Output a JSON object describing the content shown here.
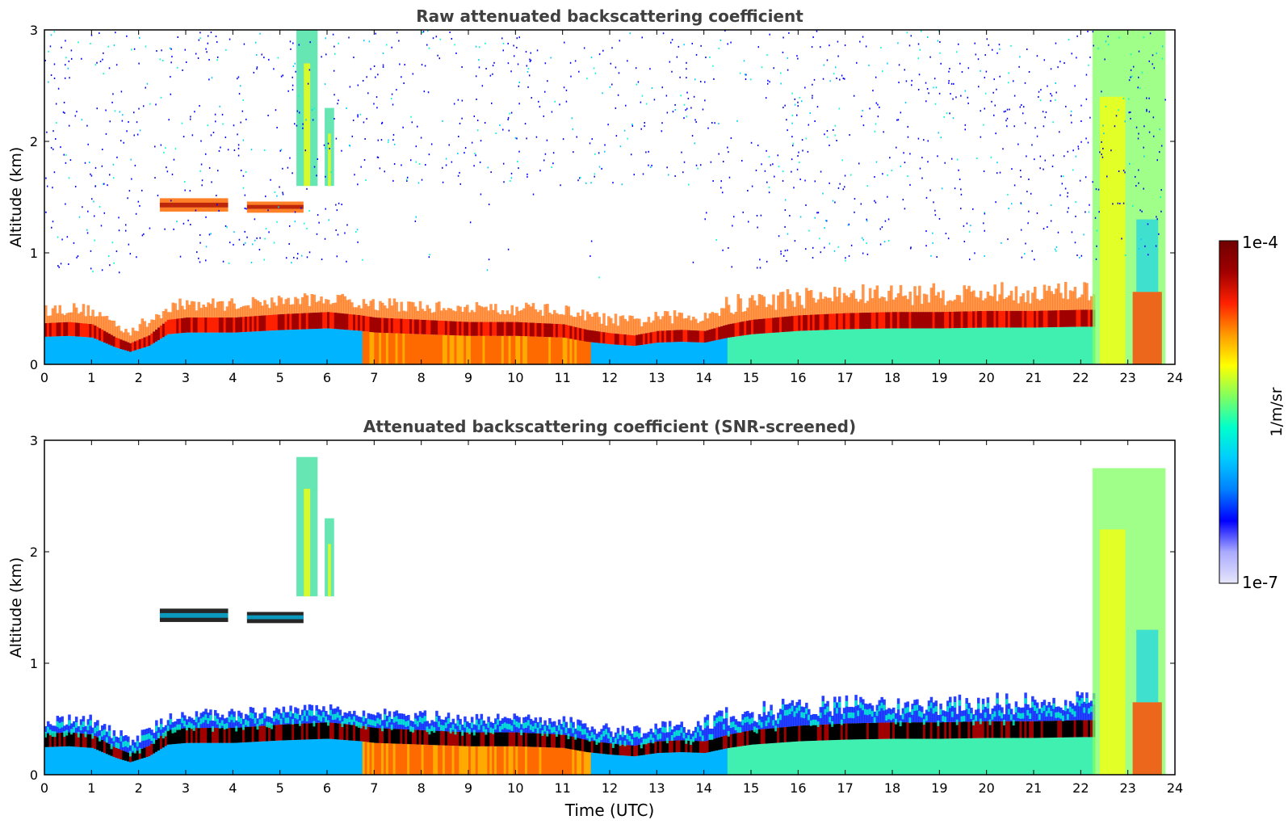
{
  "chart_data": [
    {
      "type": "heatmap",
      "title": "Raw attenuated backscattering coefficient",
      "xlabel": "",
      "ylabel": "Altitude (km)",
      "xlim": [
        0,
        24
      ],
      "ylim": [
        0,
        3
      ],
      "x_ticks": [
        "0",
        "1",
        "2",
        "3",
        "4",
        "5",
        "6",
        "7",
        "8",
        "9",
        "10",
        "11",
        "12",
        "13",
        "14",
        "15",
        "16",
        "17",
        "18",
        "19",
        "20",
        "21",
        "22",
        "23",
        "24"
      ],
      "y_ticks": [
        "0",
        "1",
        "2",
        "3"
      ],
      "grid": false,
      "features": {
        "boundary_layer_top_km": [
          [
            0,
            0.33
          ],
          [
            0.5,
            0.34
          ],
          [
            1,
            0.32
          ],
          [
            1.5,
            0.2
          ],
          [
            1.8,
            0.15
          ],
          [
            2.2,
            0.22
          ],
          [
            2.6,
            0.36
          ],
          [
            3,
            0.38
          ],
          [
            4,
            0.38
          ],
          [
            5,
            0.41
          ],
          [
            6,
            0.43
          ],
          [
            6.7,
            0.4
          ],
          [
            7,
            0.38
          ],
          [
            8,
            0.36
          ],
          [
            9,
            0.34
          ],
          [
            10,
            0.34
          ],
          [
            11,
            0.32
          ],
          [
            11.5,
            0.27
          ],
          [
            12,
            0.24
          ],
          [
            12.5,
            0.22
          ],
          [
            13,
            0.26
          ],
          [
            13.5,
            0.27
          ],
          [
            14,
            0.26
          ],
          [
            14.5,
            0.32
          ],
          [
            15,
            0.36
          ],
          [
            16,
            0.4
          ],
          [
            17,
            0.42
          ],
          [
            18,
            0.43
          ],
          [
            19,
            0.43
          ],
          [
            20,
            0.44
          ],
          [
            21,
            0.44
          ],
          [
            22,
            0.45
          ],
          [
            22.3,
            0.45
          ]
        ],
        "elevated_layers": [
          {
            "start_h": 2.45,
            "end_h": 3.9,
            "altitude_km": 1.43,
            "thickness_km": 0.12
          },
          {
            "start_h": 4.3,
            "end_h": 5.5,
            "altitude_km": 1.41,
            "thickness_km": 0.1
          }
        ],
        "precipitation_columns": [
          {
            "start_h": 5.35,
            "end_h": 5.8,
            "bottom_km": 1.6,
            "top_km": 3.0
          },
          {
            "start_h": 5.95,
            "end_h": 6.15,
            "bottom_km": 1.6,
            "top_km": 2.3
          },
          {
            "start_h": 22.25,
            "end_h": 23.8,
            "bottom_km": 0.0,
            "top_km": 3.0
          }
        ],
        "high_signal_period": {
          "start_h": 6.7,
          "end_h": 11.6
        },
        "data_gap_start_h": 23.8
      }
    },
    {
      "type": "heatmap",
      "title": "Attenuated backscattering coefficient (SNR-screened)",
      "xlabel": "Time (UTC)",
      "ylabel": "Altitude (km)",
      "xlim": [
        0,
        24
      ],
      "ylim": [
        0,
        3
      ],
      "x_ticks": [
        "0",
        "1",
        "2",
        "3",
        "4",
        "5",
        "6",
        "7",
        "8",
        "9",
        "10",
        "11",
        "12",
        "13",
        "14",
        "15",
        "16",
        "17",
        "18",
        "19",
        "20",
        "21",
        "22",
        "23",
        "24"
      ],
      "y_ticks": [
        "0",
        "1",
        "2",
        "3"
      ],
      "grid": false,
      "features": {
        "boundary_layer_top_km": [
          [
            0,
            0.33
          ],
          [
            0.5,
            0.34
          ],
          [
            1,
            0.32
          ],
          [
            1.5,
            0.2
          ],
          [
            1.8,
            0.15
          ],
          [
            2.2,
            0.22
          ],
          [
            2.6,
            0.36
          ],
          [
            3,
            0.38
          ],
          [
            4,
            0.38
          ],
          [
            5,
            0.41
          ],
          [
            6,
            0.43
          ],
          [
            6.7,
            0.4
          ],
          [
            7,
            0.38
          ],
          [
            8,
            0.36
          ],
          [
            9,
            0.34
          ],
          [
            10,
            0.34
          ],
          [
            11,
            0.32
          ],
          [
            11.5,
            0.27
          ],
          [
            12,
            0.24
          ],
          [
            12.5,
            0.22
          ],
          [
            13,
            0.26
          ],
          [
            13.5,
            0.27
          ],
          [
            14,
            0.26
          ],
          [
            14.5,
            0.32
          ],
          [
            15,
            0.36
          ],
          [
            16,
            0.4
          ],
          [
            17,
            0.42
          ],
          [
            18,
            0.43
          ],
          [
            19,
            0.43
          ],
          [
            20,
            0.44
          ],
          [
            21,
            0.44
          ],
          [
            22,
            0.45
          ],
          [
            22.3,
            0.45
          ]
        ],
        "elevated_layers": [
          {
            "start_h": 2.45,
            "end_h": 3.9,
            "altitude_km": 1.43,
            "thickness_km": 0.12
          },
          {
            "start_h": 4.3,
            "end_h": 5.5,
            "altitude_km": 1.41,
            "thickness_km": 0.1
          }
        ],
        "precipitation_columns": [
          {
            "start_h": 5.35,
            "end_h": 5.8,
            "bottom_km": 1.6,
            "top_km": 2.85
          },
          {
            "start_h": 5.95,
            "end_h": 6.15,
            "bottom_km": 1.6,
            "top_km": 2.3
          },
          {
            "start_h": 22.25,
            "end_h": 23.8,
            "bottom_km": 0.0,
            "top_km": 2.75
          }
        ],
        "high_signal_period": {
          "start_h": 6.7,
          "end_h": 11.6
        },
        "data_gap_start_h": 23.8
      }
    }
  ],
  "colorbar": {
    "label": "1/m/sr",
    "max_label": "1e-4",
    "min_label": "1e-7",
    "scale": "log",
    "colormap": [
      "#e6e6fa",
      "#aaaaff",
      "#0000ff",
      "#0080ff",
      "#00ccff",
      "#00ffcc",
      "#80ff60",
      "#ffff00",
      "#ff9900",
      "#ff2000",
      "#a00000",
      "#700000"
    ]
  },
  "colors": {
    "background": "#ffffff",
    "title": "#404040",
    "axis": "#000000",
    "weak_signal": "#0000ff",
    "aerosol_low": "#00ccff",
    "aerosol_mid": "#80ff60",
    "strong_signal": "#ff2000",
    "saturation": "#8b0000",
    "screened_peak": "#000000"
  }
}
